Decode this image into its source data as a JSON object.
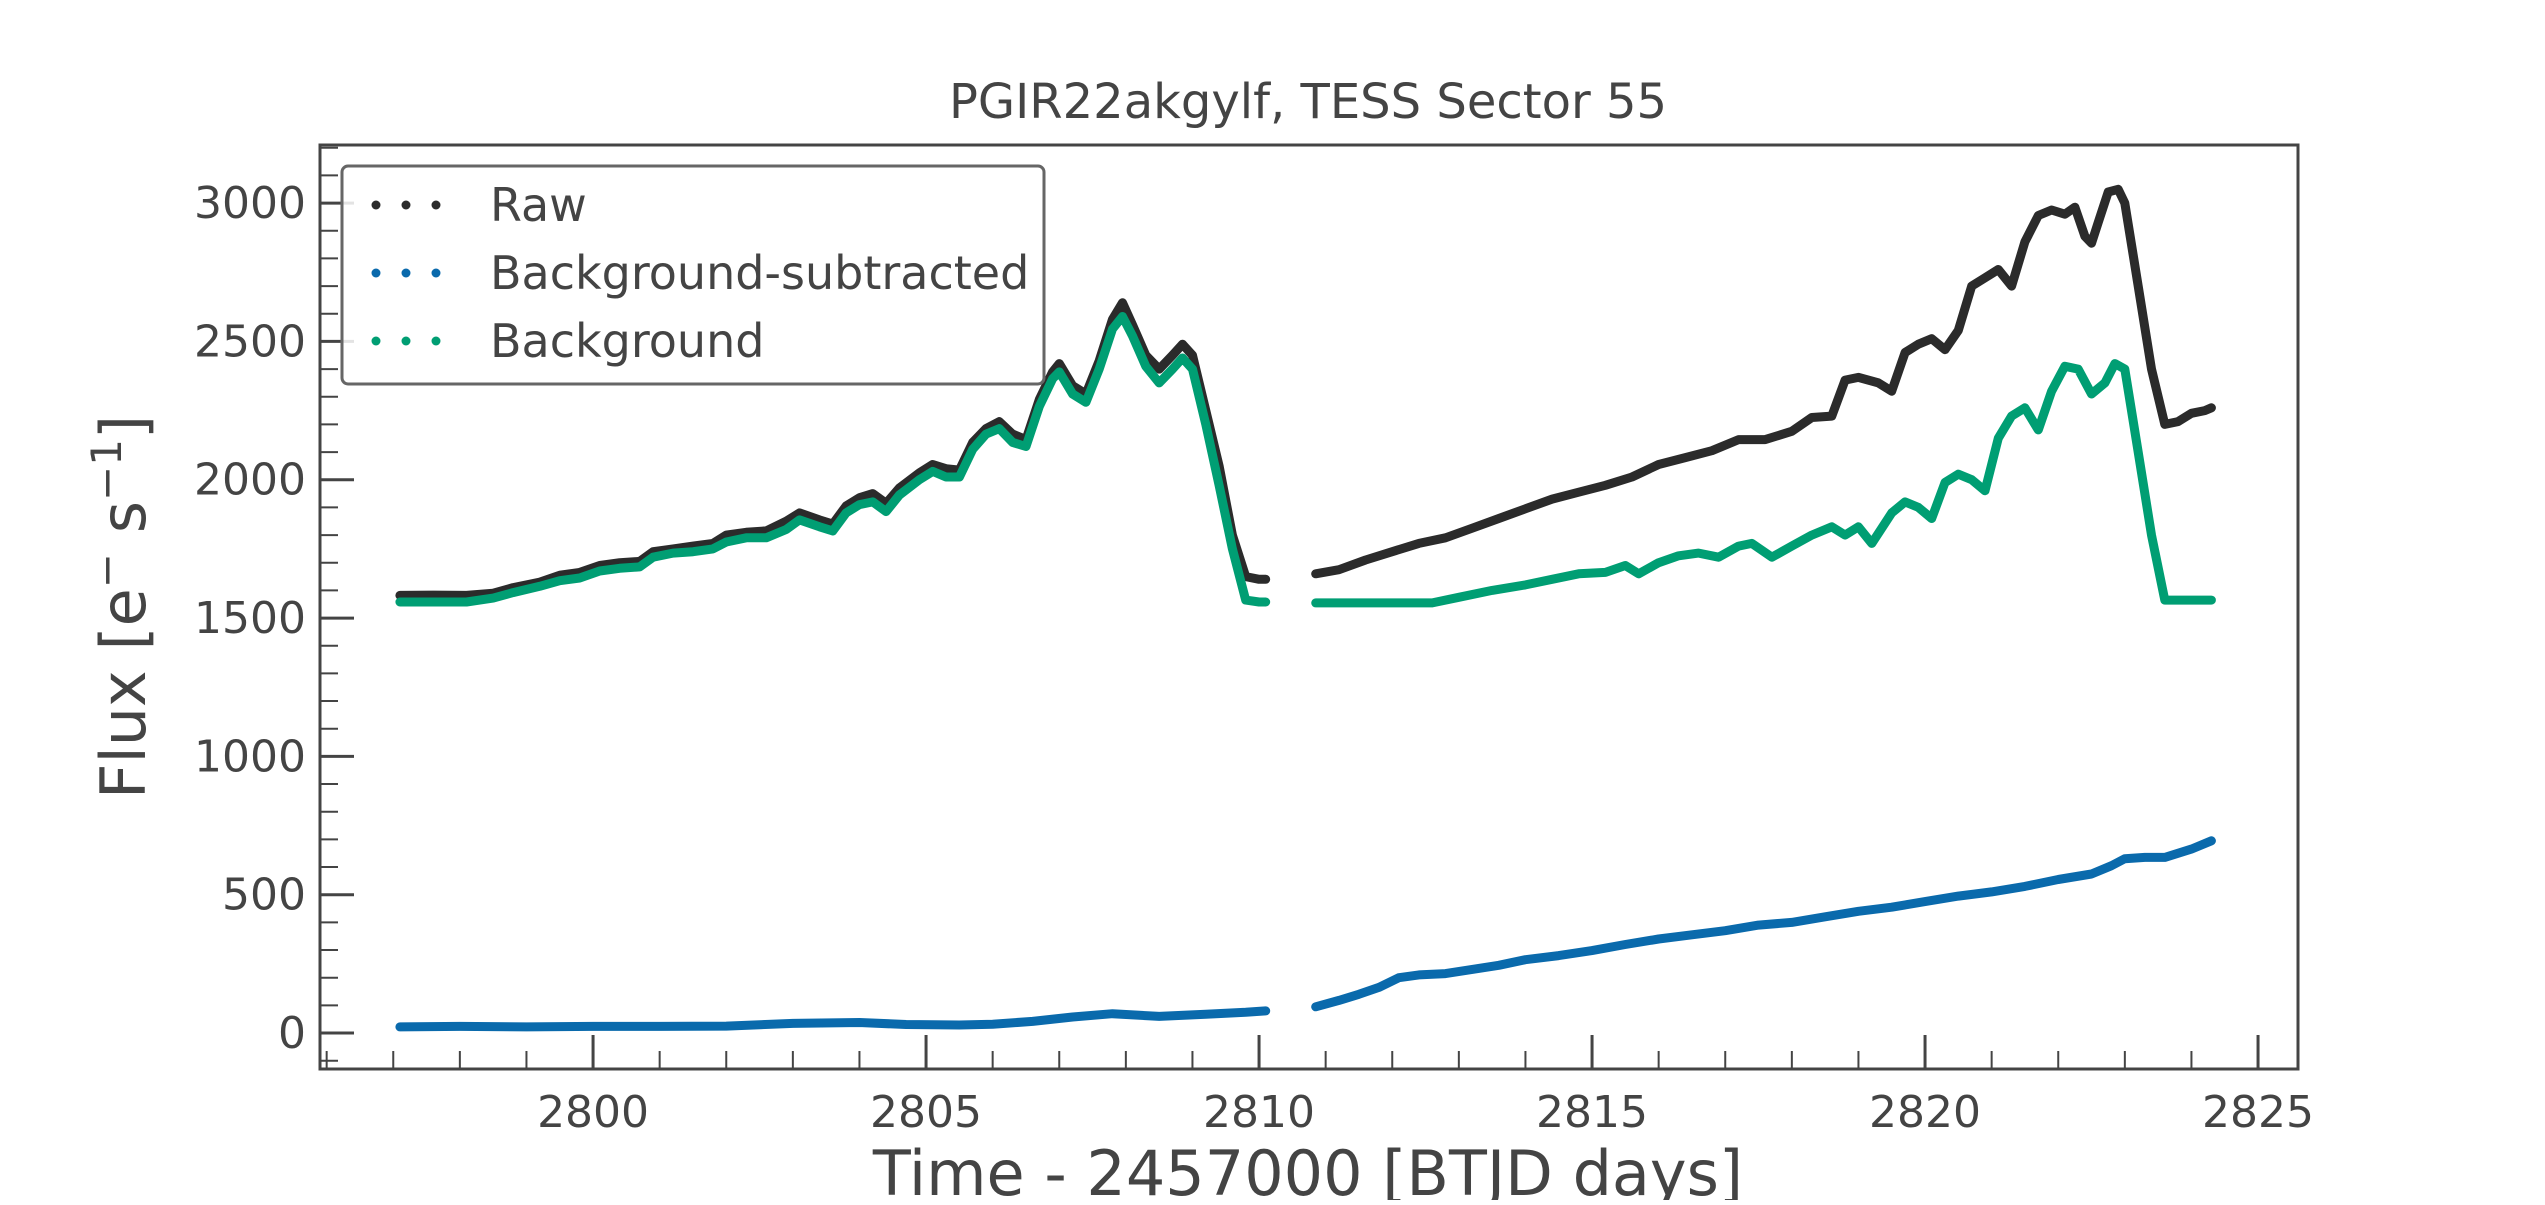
{
  "chart_data": {
    "type": "line",
    "title": "PGIR22akgylf, TESS Sector 55",
    "xlabel": "Time - 2457000 [BTJD days]",
    "ylabel_main": "Flux [e",
    "ylabel_sup1": "−",
    "ylabel_mid": " s",
    "ylabel_sup2": "−1",
    "ylabel_end": "]",
    "xlim": [
      2795.9,
      2825.6
    ],
    "ylim": [
      -130,
      3210
    ],
    "xticks": [
      2800,
      2805,
      2810,
      2815,
      2820,
      2825
    ],
    "xtick_labels": [
      "2800",
      "2805",
      "2810",
      "2815",
      "2820",
      "2825"
    ],
    "yticks": [
      0,
      500,
      1000,
      1500,
      2000,
      2500,
      3000
    ],
    "ytick_labels": [
      "0",
      "500",
      "1000",
      "1500",
      "2000",
      "2500",
      "3000"
    ],
    "legend_position": "upper-left",
    "grid": false,
    "series": [
      {
        "name": "Raw",
        "color": "#2b2b2b",
        "segments": [
          [
            [
              2797.1,
              1582
            ],
            [
              2797.6,
              1583
            ],
            [
              2798.1,
              1582
            ],
            [
              2798.5,
              1590
            ],
            [
              2798.8,
              1610
            ],
            [
              2799.2,
              1630
            ],
            [
              2799.5,
              1655
            ],
            [
              2799.8,
              1665
            ],
            [
              2800.1,
              1690
            ],
            [
              2800.4,
              1700
            ],
            [
              2800.7,
              1705
            ],
            [
              2800.9,
              1740
            ],
            [
              2801.2,
              1750
            ],
            [
              2801.5,
              1760
            ],
            [
              2801.8,
              1770
            ],
            [
              2802.0,
              1800
            ],
            [
              2802.3,
              1810
            ],
            [
              2802.6,
              1815
            ],
            [
              2802.9,
              1850
            ],
            [
              2803.1,
              1880
            ],
            [
              2803.4,
              1855
            ],
            [
              2803.6,
              1840
            ],
            [
              2803.8,
              1905
            ],
            [
              2804.0,
              1935
            ],
            [
              2804.2,
              1950
            ],
            [
              2804.4,
              1915
            ],
            [
              2804.6,
              1970
            ],
            [
              2804.9,
              2025
            ],
            [
              2805.1,
              2055
            ],
            [
              2805.3,
              2040
            ],
            [
              2805.5,
              2035
            ],
            [
              2805.7,
              2135
            ],
            [
              2805.9,
              2185
            ],
            [
              2806.1,
              2210
            ],
            [
              2806.3,
              2165
            ],
            [
              2806.5,
              2145
            ],
            [
              2806.7,
              2290
            ],
            [
              2806.9,
              2390
            ],
            [
              2807.0,
              2420
            ],
            [
              2807.2,
              2340
            ],
            [
              2807.4,
              2310
            ],
            [
              2807.6,
              2430
            ],
            [
              2807.8,
              2580
            ],
            [
              2807.95,
              2640
            ],
            [
              2808.1,
              2560
            ],
            [
              2808.3,
              2450
            ],
            [
              2808.5,
              2400
            ],
            [
              2808.7,
              2450
            ],
            [
              2808.85,
              2490
            ],
            [
              2809.0,
              2450
            ],
            [
              2809.2,
              2250
            ],
            [
              2809.4,
              2050
            ],
            [
              2809.6,
              1800
            ],
            [
              2809.8,
              1650
            ],
            [
              2810.0,
              1640
            ],
            [
              2810.1,
              1640
            ]
          ],
          [
            [
              2810.85,
              1660
            ],
            [
              2811.2,
              1675
            ],
            [
              2811.6,
              1710
            ],
            [
              2812.0,
              1740
            ],
            [
              2812.4,
              1770
            ],
            [
              2812.8,
              1790
            ],
            [
              2813.2,
              1825
            ],
            [
              2813.6,
              1860
            ],
            [
              2814.0,
              1895
            ],
            [
              2814.4,
              1930
            ],
            [
              2814.8,
              1955
            ],
            [
              2815.2,
              1980
            ],
            [
              2815.6,
              2010
            ],
            [
              2816.0,
              2055
            ],
            [
              2816.4,
              2080
            ],
            [
              2816.8,
              2105
            ],
            [
              2817.2,
              2145
            ],
            [
              2817.6,
              2145
            ],
            [
              2818.0,
              2175
            ],
            [
              2818.3,
              2225
            ],
            [
              2818.6,
              2230
            ],
            [
              2818.8,
              2360
            ],
            [
              2819.0,
              2370
            ],
            [
              2819.3,
              2350
            ],
            [
              2819.5,
              2320
            ],
            [
              2819.7,
              2460
            ],
            [
              2819.9,
              2490
            ],
            [
              2820.1,
              2510
            ],
            [
              2820.3,
              2470
            ],
            [
              2820.5,
              2540
            ],
            [
              2820.7,
              2700
            ],
            [
              2820.9,
              2730
            ],
            [
              2821.1,
              2760
            ],
            [
              2821.3,
              2700
            ],
            [
              2821.5,
              2860
            ],
            [
              2821.7,
              2955
            ],
            [
              2821.9,
              2975
            ],
            [
              2822.1,
              2960
            ],
            [
              2822.25,
              2985
            ],
            [
              2822.4,
              2880
            ],
            [
              2822.5,
              2855
            ],
            [
              2822.6,
              2930
            ],
            [
              2822.75,
              3040
            ],
            [
              2822.9,
              3050
            ],
            [
              2823.0,
              3000
            ],
            [
              2823.2,
              2700
            ],
            [
              2823.4,
              2400
            ],
            [
              2823.6,
              2200
            ],
            [
              2823.8,
              2210
            ],
            [
              2824.0,
              2240
            ],
            [
              2824.2,
              2250
            ],
            [
              2824.3,
              2260
            ]
          ]
        ]
      },
      {
        "name": "Background-subtracted",
        "color": "#0a6aac",
        "segments": [
          [
            [
              2797.1,
              22
            ],
            [
              2798.0,
              24
            ],
            [
              2799.0,
              22
            ],
            [
              2800.0,
              24
            ],
            [
              2801.0,
              24
            ],
            [
              2802.0,
              25
            ],
            [
              2803.0,
              35
            ],
            [
              2804.0,
              38
            ],
            [
              2804.7,
              31
            ],
            [
              2805.5,
              29
            ],
            [
              2806.0,
              32
            ],
            [
              2806.6,
              42
            ],
            [
              2807.2,
              58
            ],
            [
              2807.8,
              70
            ],
            [
              2808.5,
              60
            ],
            [
              2809.2,
              68
            ],
            [
              2809.8,
              75
            ],
            [
              2810.1,
              80
            ]
          ],
          [
            [
              2810.85,
              95
            ],
            [
              2811.2,
              118
            ],
            [
              2811.5,
              140
            ],
            [
              2811.8,
              165
            ],
            [
              2812.1,
              200
            ],
            [
              2812.4,
              210
            ],
            [
              2812.8,
              215
            ],
            [
              2813.2,
              230
            ],
            [
              2813.6,
              245
            ],
            [
              2814.0,
              265
            ],
            [
              2814.5,
              280
            ],
            [
              2815.0,
              298
            ],
            [
              2815.5,
              320
            ],
            [
              2816.0,
              340
            ],
            [
              2816.5,
              355
            ],
            [
              2817.0,
              370
            ],
            [
              2817.5,
              390
            ],
            [
              2818.0,
              400
            ],
            [
              2818.5,
              420
            ],
            [
              2819.0,
              440
            ],
            [
              2819.5,
              455
            ],
            [
              2820.0,
              475
            ],
            [
              2820.5,
              495
            ],
            [
              2821.0,
              510
            ],
            [
              2821.5,
              530
            ],
            [
              2822.0,
              555
            ],
            [
              2822.5,
              575
            ],
            [
              2822.8,
              605
            ],
            [
              2823.0,
              630
            ],
            [
              2823.3,
              635
            ],
            [
              2823.6,
              635
            ],
            [
              2824.0,
              665
            ],
            [
              2824.3,
              695
            ]
          ]
        ]
      },
      {
        "name": "Background",
        "color": "#009e73",
        "segments": [
          [
            [
              2797.1,
              1558
            ],
            [
              2797.6,
              1558
            ],
            [
              2798.1,
              1558
            ],
            [
              2798.5,
              1572
            ],
            [
              2798.8,
              1592
            ],
            [
              2799.2,
              1615
            ],
            [
              2799.5,
              1635
            ],
            [
              2799.8,
              1645
            ],
            [
              2800.1,
              1670
            ],
            [
              2800.4,
              1680
            ],
            [
              2800.7,
              1685
            ],
            [
              2800.9,
              1720
            ],
            [
              2801.2,
              1735
            ],
            [
              2801.5,
              1740
            ],
            [
              2801.8,
              1750
            ],
            [
              2802.0,
              1775
            ],
            [
              2802.3,
              1790
            ],
            [
              2802.6,
              1790
            ],
            [
              2802.9,
              1820
            ],
            [
              2803.1,
              1855
            ],
            [
              2803.4,
              1830
            ],
            [
              2803.6,
              1815
            ],
            [
              2803.8,
              1880
            ],
            [
              2804.0,
              1910
            ],
            [
              2804.2,
              1920
            ],
            [
              2804.4,
              1885
            ],
            [
              2804.6,
              1945
            ],
            [
              2804.9,
              2000
            ],
            [
              2805.1,
              2030
            ],
            [
              2805.3,
              2010
            ],
            [
              2805.5,
              2010
            ],
            [
              2805.7,
              2110
            ],
            [
              2805.9,
              2165
            ],
            [
              2806.1,
              2185
            ],
            [
              2806.3,
              2135
            ],
            [
              2806.5,
              2120
            ],
            [
              2806.7,
              2265
            ],
            [
              2806.9,
              2365
            ],
            [
              2807.0,
              2390
            ],
            [
              2807.2,
              2310
            ],
            [
              2807.4,
              2280
            ],
            [
              2807.6,
              2400
            ],
            [
              2807.8,
              2545
            ],
            [
              2807.95,
              2590
            ],
            [
              2808.1,
              2520
            ],
            [
              2808.3,
              2410
            ],
            [
              2808.5,
              2350
            ],
            [
              2808.7,
              2400
            ],
            [
              2808.85,
              2440
            ],
            [
              2809.0,
              2400
            ],
            [
              2809.2,
              2200
            ],
            [
              2809.4,
              1980
            ],
            [
              2809.6,
              1750
            ],
            [
              2809.8,
              1565
            ],
            [
              2810.0,
              1558
            ],
            [
              2810.1,
              1558
            ]
          ],
          [
            [
              2810.85,
              1555
            ],
            [
              2811.5,
              1555
            ],
            [
              2812.0,
              1555
            ],
            [
              2812.6,
              1555
            ],
            [
              2813.0,
              1575
            ],
            [
              2813.5,
              1600
            ],
            [
              2814.0,
              1620
            ],
            [
              2814.4,
              1640
            ],
            [
              2814.8,
              1660
            ],
            [
              2815.2,
              1665
            ],
            [
              2815.5,
              1690
            ],
            [
              2815.7,
              1660
            ],
            [
              2816.0,
              1700
            ],
            [
              2816.3,
              1725
            ],
            [
              2816.6,
              1735
            ],
            [
              2816.9,
              1720
            ],
            [
              2817.2,
              1760
            ],
            [
              2817.4,
              1770
            ],
            [
              2817.7,
              1720
            ],
            [
              2818.0,
              1760
            ],
            [
              2818.3,
              1800
            ],
            [
              2818.6,
              1830
            ],
            [
              2818.8,
              1800
            ],
            [
              2819.0,
              1830
            ],
            [
              2819.2,
              1770
            ],
            [
              2819.5,
              1880
            ],
            [
              2819.7,
              1920
            ],
            [
              2819.9,
              1900
            ],
            [
              2820.1,
              1860
            ],
            [
              2820.3,
              1990
            ],
            [
              2820.5,
              2020
            ],
            [
              2820.7,
              2000
            ],
            [
              2820.9,
              1960
            ],
            [
              2821.1,
              2150
            ],
            [
              2821.3,
              2230
            ],
            [
              2821.5,
              2260
            ],
            [
              2821.7,
              2180
            ],
            [
              2821.9,
              2320
            ],
            [
              2822.1,
              2410
            ],
            [
              2822.3,
              2400
            ],
            [
              2822.5,
              2310
            ],
            [
              2822.7,
              2350
            ],
            [
              2822.85,
              2420
            ],
            [
              2823.0,
              2400
            ],
            [
              2823.2,
              2100
            ],
            [
              2823.4,
              1800
            ],
            [
              2823.6,
              1565
            ],
            [
              2824.0,
              1565
            ],
            [
              2824.3,
              1565
            ]
          ]
        ]
      }
    ]
  }
}
